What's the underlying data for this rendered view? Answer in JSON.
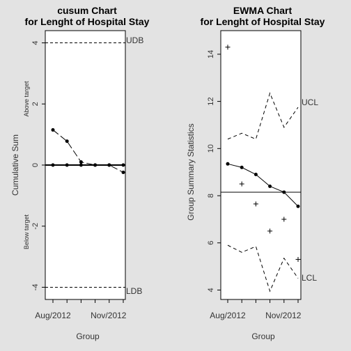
{
  "chart_data": [
    {
      "type": "line",
      "title": "cusum Chart",
      "subtitle": "for Lenght of Hospital Stay",
      "xlabel": "Group",
      "ylabel": "Cumulative Sum",
      "ylabel_above": "Above target",
      "ylabel_below": "Below target",
      "x_tick_labels": [
        "Aug/2012",
        "Nov/2012"
      ],
      "x_tick_label_positions": [
        1,
        4
      ],
      "n_groups": 6,
      "ylim": [
        -4.4,
        4.4
      ],
      "y_ticks": [
        -4,
        -2,
        0,
        2,
        4
      ],
      "center_line": 0,
      "limits": {
        "upper": 4,
        "upper_label": "UDB",
        "lower": -4,
        "lower_label": "LDB"
      },
      "series": [
        {
          "values": [
            1.15,
            0.78,
            0.1,
            0.0,
            0.0,
            0.0
          ],
          "style": "dashed",
          "markers": true
        },
        {
          "values": [
            0,
            0,
            0,
            0,
            0,
            -0.24
          ],
          "style": "dashed",
          "markers": true
        }
      ],
      "grid": false
    },
    {
      "type": "line",
      "title": "EWMA Chart",
      "subtitle": "for Lenght of Hospital Stay",
      "xlabel": "Group",
      "ylabel": "Group Summary Statistics",
      "x_tick_labels": [
        "Aug/2012",
        "Nov/2012"
      ],
      "x_tick_label_positions": [
        1,
        4
      ],
      "n_groups": 6,
      "ylim": [
        3.6,
        15.0
      ],
      "y_ticks": [
        4,
        6,
        8,
        10,
        12,
        14
      ],
      "center_line": 8.15,
      "observed": [
        14.3,
        8.5,
        7.65,
        6.5,
        7.0,
        5.3
      ],
      "ewma": [
        9.35,
        9.2,
        8.9,
        8.4,
        8.15,
        7.55
      ],
      "ucl": [
        10.4,
        10.65,
        10.4,
        12.35,
        10.9,
        11.75
      ],
      "lcl": [
        5.9,
        5.6,
        5.85,
        3.95,
        5.35,
        4.5
      ],
      "ucl_label": "UCL",
      "lcl_label": "LCL",
      "grid": false
    }
  ]
}
